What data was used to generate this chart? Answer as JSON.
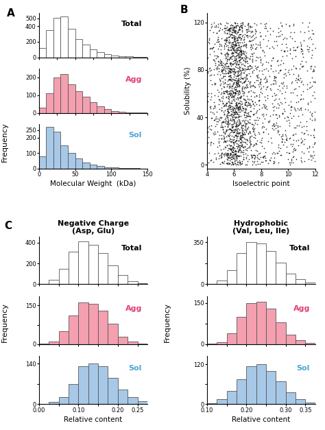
{
  "panel_A_label": "A",
  "panel_B_label": "B",
  "panel_C_label": "C",
  "mw_bins": [
    0,
    10,
    20,
    30,
    40,
    50,
    60,
    70,
    80,
    90,
    100,
    110,
    120,
    130,
    140,
    150
  ],
  "mw_total_counts": [
    120,
    350,
    510,
    520,
    370,
    230,
    160,
    100,
    65,
    40,
    25,
    15,
    10,
    5,
    3
  ],
  "mw_agg_counts": [
    30,
    110,
    200,
    220,
    160,
    120,
    90,
    60,
    35,
    20,
    10,
    6,
    3,
    2,
    1
  ],
  "mw_sol_counts": [
    80,
    270,
    240,
    150,
    100,
    65,
    40,
    25,
    15,
    8,
    5,
    3,
    2,
    1,
    0
  ],
  "color_total": "#ffffff",
  "color_agg": "#f4a0b0",
  "color_sol": "#a8c8e8",
  "color_edge": "#555555",
  "mw_xlabel": "Molecular Weight  (kDa)",
  "freq_ylabel": "Frequency",
  "scatter_xlabel": "Isoelectric point",
  "scatter_ylabel": "Solubility (%)",
  "neg_bins": [
    0.0,
    0.025,
    0.05,
    0.075,
    0.1,
    0.125,
    0.15,
    0.175,
    0.2,
    0.225,
    0.25,
    0.275
  ],
  "neg_total_counts": [
    5,
    40,
    150,
    310,
    410,
    380,
    300,
    180,
    90,
    30,
    10
  ],
  "neg_agg_counts": [
    2,
    10,
    50,
    110,
    160,
    155,
    130,
    80,
    30,
    10,
    3
  ],
  "neg_sol_counts": [
    2,
    8,
    25,
    70,
    130,
    140,
    130,
    90,
    50,
    25,
    10
  ],
  "hyd_bins": [
    0.1,
    0.125,
    0.15,
    0.175,
    0.2,
    0.225,
    0.25,
    0.275,
    0.3,
    0.325,
    0.35,
    0.375
  ],
  "hyd_total_counts": [
    5,
    30,
    120,
    260,
    350,
    340,
    280,
    180,
    90,
    40,
    15
  ],
  "hyd_agg_counts": [
    2,
    8,
    40,
    100,
    150,
    155,
    130,
    80,
    35,
    15,
    4
  ],
  "hyd_sol_counts": [
    3,
    15,
    40,
    75,
    115,
    120,
    100,
    70,
    35,
    15,
    5
  ],
  "neg_xlabel": "Relative content",
  "hyd_xlabel": "Relative content",
  "neg_title1": "Negative Charge",
  "neg_title2": "(Asp, Glu)",
  "hyd_title1": "Hydrophobic",
  "hyd_title2": "(Val, Leu, Ile)",
  "label_Total": "Total",
  "label_Agg": "Agg",
  "label_Sol": "Sol",
  "color_agg_text": "#e0407a",
  "color_sol_text": "#4da6d6"
}
